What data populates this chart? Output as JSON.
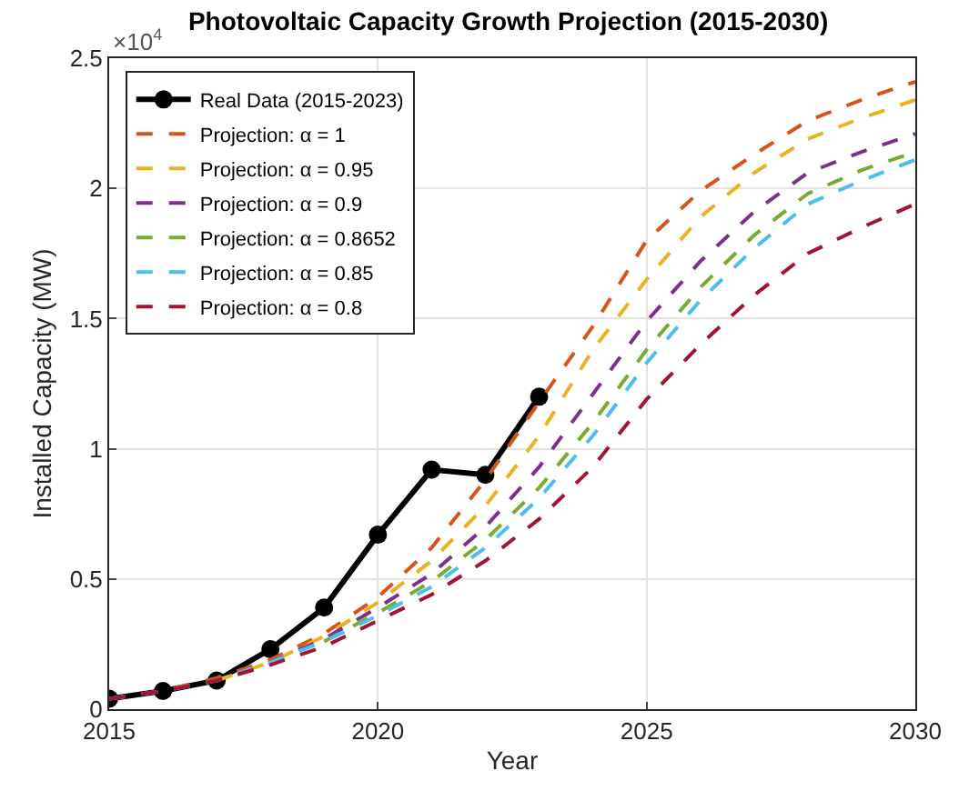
{
  "chart_data": {
    "type": "line",
    "title": "Photovoltaic Capacity Growth Projection (2015-2030)",
    "xlabel": "Year",
    "ylabel": "Installed Capacity (MW)",
    "annotations": [
      "×10$^{4}$"
    ],
    "xlim": [
      2015,
      2030
    ],
    "xticks": [
      2015,
      2020,
      2025,
      2030
    ],
    "ylim": [
      0,
      2.5
    ],
    "yticks": [
      0,
      0.5,
      1,
      1.5,
      2,
      2.5
    ],
    "grid": true,
    "legend": "top left",
    "series": [
      {
        "name": "Real Data (2015-2023)",
        "color": "#000000",
        "marker": "circle",
        "line_style": "solid",
        "x": [
          2015,
          2016,
          2017,
          2018,
          2019,
          2020,
          2021,
          2022,
          2023
        ],
        "values": [
          0.04,
          0.07,
          0.11,
          0.23,
          0.39,
          0.67,
          0.92,
          0.9,
          1.2
        ]
      },
      {
        "name": "Projection: α = 1",
        "color": "#d95319",
        "marker": "none",
        "line_style": "dashed",
        "x": [
          2015,
          2016,
          2017,
          2018,
          2019,
          2020,
          2021,
          2022,
          2023,
          2024,
          2025,
          2026,
          2027,
          2028,
          2029,
          2030
        ],
        "values": [
          0.04,
          0.07,
          0.12,
          0.19,
          0.29,
          0.43,
          0.62,
          0.88,
          1.18,
          1.47,
          1.8,
          1.99,
          2.13,
          2.26,
          2.34,
          2.41
        ]
      },
      {
        "name": "Projection: α = 0.95",
        "color": "#edb120",
        "marker": "none",
        "line_style": "dashed",
        "x": [
          2017,
          2018,
          2019,
          2020,
          2021,
          2022,
          2023,
          2024,
          2025,
          2026,
          2027,
          2028,
          2029,
          2030
        ],
        "values": [
          0.11,
          0.18,
          0.28,
          0.41,
          0.57,
          0.78,
          1.05,
          1.38,
          1.65,
          1.89,
          2.06,
          2.19,
          2.27,
          2.34
        ]
      },
      {
        "name": "Projection: α = 0.9",
        "color": "#7e2f8e",
        "marker": "none",
        "line_style": "dashed",
        "x": [
          2015,
          2016,
          2017,
          2018,
          2019,
          2020,
          2021,
          2022,
          2023,
          2024,
          2025,
          2026,
          2027,
          2028,
          2029,
          2030
        ],
        "values": [
          0.04,
          0.07,
          0.11,
          0.18,
          0.27,
          0.39,
          0.52,
          0.7,
          0.93,
          1.21,
          1.49,
          1.72,
          1.91,
          2.06,
          2.14,
          2.21
        ]
      },
      {
        "name": "Projection: α = 0.8652",
        "color": "#77ac30",
        "marker": "none",
        "line_style": "dashed",
        "x": [
          2019,
          2020,
          2021,
          2022,
          2023,
          2024,
          2025,
          2026,
          2027,
          2028,
          2029,
          2030
        ],
        "values": [
          0.26,
          0.37,
          0.49,
          0.65,
          0.85,
          1.1,
          1.38,
          1.62,
          1.82,
          1.98,
          2.07,
          2.14
        ]
      },
      {
        "name": "Projection: α = 0.85",
        "color": "#4dbeee",
        "marker": "none",
        "line_style": "dashed",
        "x": [
          2015,
          2016,
          2017,
          2018,
          2019,
          2020,
          2021,
          2022,
          2023,
          2024,
          2025,
          2026,
          2027,
          2028,
          2029,
          2030
        ],
        "values": [
          0.04,
          0.07,
          0.11,
          0.18,
          0.26,
          0.36,
          0.47,
          0.62,
          0.81,
          1.05,
          1.33,
          1.57,
          1.77,
          1.94,
          2.03,
          2.11
        ]
      },
      {
        "name": "Projection: α = 0.8",
        "color": "#a2142f",
        "marker": "none",
        "line_style": "dashed",
        "x": [
          2015,
          2016,
          2017,
          2018,
          2019,
          2020,
          2021,
          2022,
          2023,
          2024,
          2025,
          2026,
          2027,
          2028,
          2029,
          2030
        ],
        "values": [
          0.04,
          0.07,
          0.11,
          0.17,
          0.24,
          0.34,
          0.44,
          0.57,
          0.73,
          0.93,
          1.19,
          1.4,
          1.59,
          1.75,
          1.85,
          1.94
        ]
      }
    ]
  }
}
